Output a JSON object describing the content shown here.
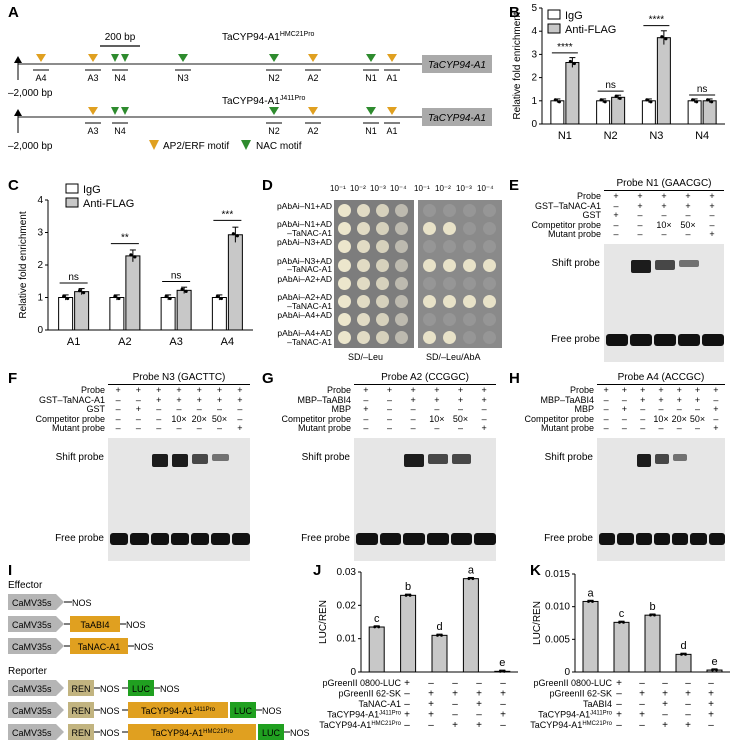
{
  "labels": {
    "A": "A",
    "B": "B",
    "C": "C",
    "D": "D",
    "E": "E",
    "F": "F",
    "G": "G",
    "H": "H",
    "I": "I",
    "J": "J",
    "K": "K"
  },
  "panelA": {
    "scale_bar": "200 bp",
    "promoter1": "TaCYP94-A1",
    "promoter1_sup": "HMC21Pro",
    "promoter2": "TaCYP94-A1",
    "promoter2_sup": "J411Pro",
    "gene": "TaCYP94-A1",
    "start": "–2,000 bp",
    "row1_sites": [
      "A4",
      "A3",
      "N4",
      "N3",
      "N2",
      "A2",
      "N1",
      "A1"
    ],
    "row2_sites": [
      "A3",
      "N4",
      "N2",
      "A2",
      "N1",
      "A1"
    ],
    "legend_ap2": "AP2/ERF motif",
    "legend_nac": "NAC motif",
    "colors": {
      "ap2": "#e0a020",
      "nac": "#2e8b2e",
      "gene_box": "#aaaaaa"
    }
  },
  "chart_data": [
    {
      "id": "B",
      "type": "bar",
      "ylabel": "Relative fold enrichment",
      "ylim": [
        0,
        5
      ],
      "yticks": [
        0,
        1,
        2,
        3,
        4,
        5
      ],
      "categories": [
        "N1",
        "N2",
        "N3",
        "N4"
      ],
      "series": [
        {
          "name": "IgG",
          "values": [
            1.0,
            1.0,
            1.0,
            1.0
          ]
        },
        {
          "name": "Anti-FLAG",
          "values": [
            2.65,
            1.15,
            3.72,
            1.0
          ]
        }
      ],
      "significance": [
        "****",
        "ns",
        "****",
        "ns"
      ]
    },
    {
      "id": "C",
      "type": "bar",
      "ylabel": "Relative fold enrichment",
      "ylim": [
        0,
        4
      ],
      "yticks": [
        0,
        1,
        2,
        3,
        4
      ],
      "categories": [
        "A1",
        "A2",
        "A3",
        "A4"
      ],
      "series": [
        {
          "name": "IgG",
          "values": [
            1.0,
            1.0,
            1.0,
            1.0
          ]
        },
        {
          "name": "Anti-FLAG",
          "values": [
            1.18,
            2.28,
            1.22,
            2.93
          ]
        }
      ],
      "significance": [
        "ns",
        "**",
        "ns",
        "***"
      ]
    },
    {
      "id": "J",
      "type": "bar",
      "ylabel": "LUC/REN",
      "ylim": [
        0,
        0.03
      ],
      "yticks": [
        "0",
        "0.01",
        "0.02",
        "0.03"
      ],
      "values": [
        0.0135,
        0.023,
        0.011,
        0.028,
        0.0002
      ],
      "letters": [
        "c",
        "b",
        "d",
        "a",
        "e"
      ]
    },
    {
      "id": "K",
      "type": "bar",
      "ylabel": "LUC/REN",
      "ylim": [
        0,
        0.015
      ],
      "yticks": [
        "0",
        "0.005",
        "0.010",
        "0.015"
      ],
      "values": [
        0.0108,
        0.0076,
        0.0087,
        0.0027,
        0.0003
      ],
      "letters": [
        "a",
        "c",
        "b",
        "d",
        "e"
      ]
    }
  ],
  "panelD": {
    "dilutions": [
      "10⁻¹",
      "10⁻²",
      "10⁻³",
      "10⁻⁴"
    ],
    "rows": [
      "pAbAi–N1+AD",
      "pAbAi–N1+AD\n–TaNAC-A1",
      "pAbAi–N3+AD",
      "pAbAi–N3+AD\n–TaNAC-A1",
      "pAbAi–A2+AD",
      "pAbAi–A2+AD\n–TaNAC-A1",
      "pAbAi–A4+AD",
      "pAbAi–A4+AD\n–TaNAC-A1"
    ],
    "left_medium": "SD/–Leu",
    "right_medium": "SD/–Leu/AbA"
  },
  "emsa": {
    "E": {
      "title": "Probe N1 (GAACGC)",
      "rows": [
        [
          "Probe",
          "+",
          "+",
          "+",
          "+",
          "+"
        ],
        [
          "GST–TaNAC-A1",
          "–",
          "+",
          "+",
          "+",
          "+"
        ],
        [
          "GST",
          "+",
          "–",
          "–",
          "–",
          "–"
        ],
        [
          "Competitor probe",
          "–",
          "–",
          "10×",
          "50×",
          "–"
        ],
        [
          "Mutant probe",
          "–",
          "–",
          "–",
          "–",
          "+"
        ]
      ],
      "shift": "Shift probe",
      "free": "Free probe"
    },
    "F": {
      "title": "Probe N3 (GACTTC)",
      "rows": [
        [
          "Probe",
          "+",
          "+",
          "+",
          "+",
          "+",
          "+",
          "+"
        ],
        [
          "GST–TaNAC-A1",
          "–",
          "–",
          "+",
          "+",
          "+",
          "+",
          "+"
        ],
        [
          "GST",
          "–",
          "+",
          "–",
          "–",
          "–",
          "–",
          "–"
        ],
        [
          "Competitor probe",
          "–",
          "–",
          "–",
          "10×",
          "20×",
          "50×",
          "–"
        ],
        [
          "Mutant probe",
          "–",
          "–",
          "–",
          "–",
          "–",
          "–",
          "+"
        ]
      ],
      "shift": "Shift probe",
      "free": "Free probe"
    },
    "G": {
      "title": "Probe A2 (CCGGC)",
      "rows": [
        [
          "Probe",
          "+",
          "+",
          "+",
          "+",
          "+",
          "+"
        ],
        [
          "MBP–TaABI4",
          "–",
          "–",
          "+",
          "+",
          "+",
          "+"
        ],
        [
          "MBP",
          "+",
          "–",
          "–",
          "–",
          "–",
          "–"
        ],
        [
          "Competitor probe",
          "–",
          "–",
          "–",
          "10×",
          "50×",
          "–"
        ],
        [
          "Mutant probe",
          "–",
          "–",
          "–",
          "–",
          "–",
          "+"
        ]
      ],
      "shift": "Shift probe",
      "free": "Free probe"
    },
    "H": {
      "title": "Probe A4 (ACCGC)",
      "rows": [
        [
          "Probe",
          "+",
          "+",
          "+",
          "+",
          "+",
          "+",
          "+"
        ],
        [
          "MBP–TaABI4",
          "–",
          "–",
          "+",
          "+",
          "+",
          "+",
          "–"
        ],
        [
          "MBP",
          "–",
          "+",
          "–",
          "–",
          "–",
          "–",
          "+"
        ],
        [
          "Competitor probe",
          "–",
          "–",
          "–",
          "10×",
          "20×",
          "50×",
          "–"
        ],
        [
          "Mutant probe",
          "–",
          "–",
          "–",
          "–",
          "–",
          "–",
          "+"
        ]
      ],
      "shift": "Shift probe",
      "free": "Free probe"
    }
  },
  "panelI": {
    "effector": "Effector",
    "reporter": "Reporter",
    "promoter": "CaMV35s",
    "nos": "NOS",
    "taabi4": "TaABI4",
    "tanac": "TaNAC-A1",
    "ren": "REN",
    "luc": "LUC",
    "pro_j": "TaCYP94-A1",
    "pro_j_sup": "J411Pro",
    "pro_h": "TaCYP94-A1",
    "pro_h_sup": "HMC21Pro",
    "colors": {
      "arrow": "#b5b5b5",
      "gene": "#e0a020",
      "ren": "#c2b480",
      "luc": "#20a020"
    }
  },
  "tableJ": {
    "rows": [
      [
        "pGreenII 0800-LUC",
        "+",
        "–",
        "–",
        "–",
        "–"
      ],
      [
        "pGreenII 62-SK",
        "–",
        "+",
        "+",
        "+",
        "+"
      ],
      [
        "TaNAC-A1",
        "–",
        "+",
        "–",
        "+",
        "–"
      ],
      [
        "TaCYP94-A1",
        "J411Pro",
        "+",
        "+",
        "–",
        "–",
        "+"
      ],
      [
        "TaCYP94-A1",
        "HMC21Pro",
        "–",
        "–",
        "+",
        "+",
        "–"
      ]
    ]
  },
  "tableK": {
    "rows": [
      [
        "pGreenII 0800-LUC",
        "+",
        "–",
        "–",
        "–",
        "–"
      ],
      [
        "pGreenII 62-SK",
        "–",
        "+",
        "+",
        "+",
        "+"
      ],
      [
        "TaABI4",
        "–",
        "–",
        "+",
        "–",
        "+"
      ],
      [
        "TaCYP94-A1",
        "J411Pro",
        "+",
        "+",
        "–",
        "–",
        "+"
      ],
      [
        "TaCYP94-A1",
        "HMC21Pro",
        "–",
        "–",
        "+",
        "+",
        "–"
      ]
    ]
  }
}
